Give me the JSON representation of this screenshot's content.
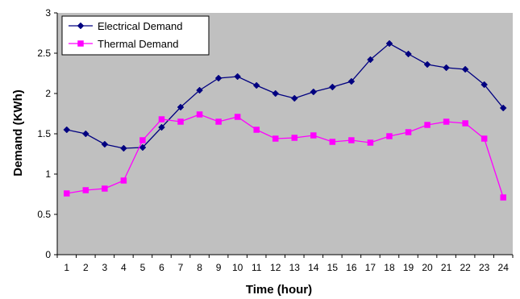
{
  "chart_data": {
    "type": "line",
    "title": "",
    "xlabel": "Time (hour)",
    "ylabel": "Demand (KWh)",
    "x": [
      1,
      2,
      3,
      4,
      5,
      6,
      7,
      8,
      9,
      10,
      11,
      12,
      13,
      14,
      15,
      16,
      17,
      18,
      19,
      20,
      21,
      22,
      23,
      24
    ],
    "xlim": [
      0.5,
      24.5
    ],
    "ylim": [
      0,
      3
    ],
    "yticks": [
      "0",
      "0.5",
      "1",
      "1.5",
      "2",
      "2.5",
      "3"
    ],
    "yticks_values": [
      0,
      0.5,
      1,
      1.5,
      2,
      2.5,
      3
    ],
    "grid": false,
    "legend_position": "top-left",
    "plot_background": "#c0c0c0",
    "series": [
      {
        "name": "Electrical Demand",
        "color": "#000080",
        "marker": "diamond",
        "values": [
          1.55,
          1.5,
          1.37,
          1.32,
          1.33,
          1.58,
          1.83,
          2.04,
          2.19,
          2.21,
          2.1,
          2.0,
          1.94,
          2.02,
          2.08,
          2.15,
          2.42,
          2.62,
          2.49,
          2.36,
          2.32,
          2.3,
          2.11,
          1.82
        ]
      },
      {
        "name": "Thermal Demand",
        "color": "#ff00ff",
        "marker": "square",
        "values": [
          0.76,
          0.8,
          0.82,
          0.92,
          1.42,
          1.68,
          1.65,
          1.74,
          1.65,
          1.71,
          1.55,
          1.44,
          1.45,
          1.48,
          1.4,
          1.42,
          1.39,
          1.47,
          1.52,
          1.61,
          1.65,
          1.63,
          1.44,
          0.71
        ]
      }
    ]
  }
}
